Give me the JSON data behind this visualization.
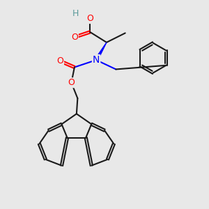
{
  "bg_color": "#e8e8e8",
  "bond_color": "#1a1a1a",
  "bond_width": 1.5,
  "atom_colors": {
    "O": "#ff0000",
    "N": "#0000ff",
    "H": "#5a9a9a",
    "C": "#1a1a1a"
  },
  "font_size_atoms": 9,
  "fig_size": [
    3.0,
    3.0
  ],
  "dpi": 100
}
